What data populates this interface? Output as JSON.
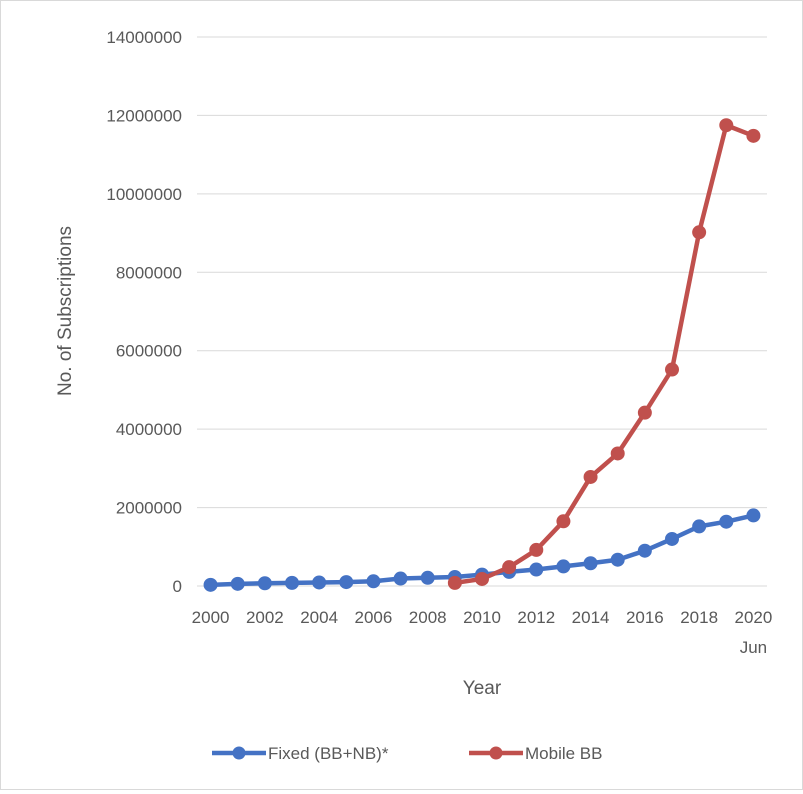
{
  "chart_data": {
    "type": "line",
    "title": "",
    "xlabel": "Year",
    "ylabel": "No. of Subscriptions",
    "ylim": [
      0,
      14000000
    ],
    "yticks": [
      "0",
      "2000000",
      "4000000",
      "6000000",
      "8000000",
      "10000000",
      "12000000",
      "14000000"
    ],
    "yticks_values": [
      0,
      2000000,
      4000000,
      6000000,
      8000000,
      10000000,
      12000000,
      14000000
    ],
    "x": [
      "2000",
      "2001",
      "2002",
      "2003",
      "2004",
      "2005",
      "2006",
      "2007",
      "2008",
      "2009",
      "2010",
      "2011",
      "2012",
      "2013",
      "2014",
      "2015",
      "2016",
      "2017",
      "2018",
      "2019",
      "2020 Jun"
    ],
    "xtick_labels": [
      "2000",
      "2002",
      "2004",
      "2006",
      "2008",
      "2010",
      "2012",
      "2014",
      "2016",
      "2018",
      "2020"
    ],
    "xtick_extra_label": "Jun",
    "grid": true,
    "legend_position": "bottom",
    "series": [
      {
        "name": "Fixed (BB+NB)*",
        "color": "#4472c4",
        "values": [
          30000,
          55000,
          70000,
          80000,
          90000,
          100000,
          120000,
          190000,
          210000,
          230000,
          290000,
          360000,
          420000,
          500000,
          580000,
          670000,
          900000,
          1200000,
          1520000,
          1640000,
          1800000
        ]
      },
      {
        "name": "Mobile BB",
        "color": "#c0504d",
        "values": [
          null,
          null,
          null,
          null,
          null,
          null,
          null,
          null,
          null,
          80000,
          180000,
          480000,
          920000,
          1650000,
          2780000,
          3380000,
          4420000,
          5520000,
          9020000,
          11750000,
          11480000
        ]
      }
    ]
  }
}
